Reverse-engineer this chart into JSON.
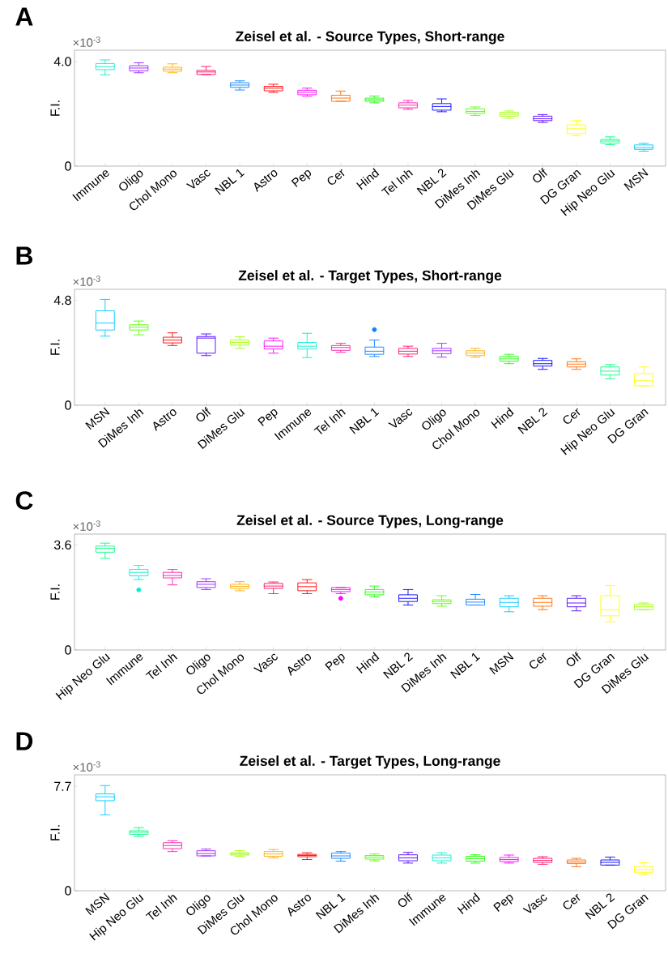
{
  "chart_data": [
    {
      "type": "box",
      "title": "Zeisel et al. - Source Types, Short-range",
      "ylabel": "F.I.",
      "annotations": [
        "A",
        "×10$^{-3}$"
      ],
      "categories": [
        "Immune",
        "Oligo",
        "Chol Mono",
        "Vasc",
        "NBL 1",
        "Astro",
        "Pep",
        "Cer",
        "Hind",
        "Tel Inh",
        "NBL 2",
        "DiMes Inh",
        "DiMes Glu",
        "Olf",
        "DG Gran",
        "Hip Neo Glu",
        "MSN"
      ],
      "colors": [
        "#00f0d0",
        "#9a20ff",
        "#ffaa00",
        "#ff0a64",
        "#0a80ff",
        "#ff0000",
        "#ff00ff",
        "#ff6a00",
        "#1aff00",
        "#ff1aa8",
        "#0000ff",
        "#55ff00",
        "#a0ff00",
        "#5000ff",
        "#ffff00",
        "#00ff80",
        "#00c8ff"
      ],
      "ylim": [
        0,
        4.43
      ],
      "yticks": [
        0,
        {
          "value": 4,
          "label": "4.0"
        }
      ],
      "grid": false,
      "boxes": [
        {
          "low": 3.49,
          "q1": 3.69,
          "median": 3.8,
          "q3": 3.92,
          "high": 4.06
        },
        {
          "low": 3.57,
          "q1": 3.64,
          "median": 3.75,
          "q3": 3.84,
          "high": 3.95
        },
        {
          "low": 3.57,
          "q1": 3.63,
          "median": 3.71,
          "q3": 3.78,
          "high": 3.91
        },
        {
          "low": 3.5,
          "q1": 3.5,
          "median": 3.6,
          "q3": 3.66,
          "high": 3.81
        },
        {
          "low": 2.91,
          "q1": 3.01,
          "median": 3.1,
          "q3": 3.19,
          "high": 3.26
        },
        {
          "low": 2.82,
          "q1": 2.88,
          "median": 2.98,
          "q3": 3.05,
          "high": 3.13
        },
        {
          "low": 2.67,
          "q1": 2.73,
          "median": 2.82,
          "q3": 2.9,
          "high": 2.98
        },
        {
          "low": 2.48,
          "q1": 2.48,
          "median": 2.6,
          "q3": 2.71,
          "high": 2.87
        },
        {
          "low": 2.42,
          "q1": 2.48,
          "median": 2.54,
          "q3": 2.6,
          "high": 2.68
        },
        {
          "low": 2.17,
          "q1": 2.23,
          "median": 2.33,
          "q3": 2.42,
          "high": 2.51
        },
        {
          "low": 2.08,
          "q1": 2.14,
          "median": 2.28,
          "q3": 2.39,
          "high": 2.57
        },
        {
          "low": 1.94,
          "q1": 2.02,
          "median": 2.09,
          "q3": 2.19,
          "high": 2.26
        },
        {
          "low": 1.83,
          "q1": 1.91,
          "median": 1.98,
          "q3": 2.06,
          "high": 2.11
        },
        {
          "low": 1.67,
          "q1": 1.74,
          "median": 1.81,
          "q3": 1.91,
          "high": 1.97
        },
        {
          "low": 1.16,
          "q1": 1.24,
          "median": 1.43,
          "q3": 1.58,
          "high": 1.74
        },
        {
          "low": 0.82,
          "q1": 0.88,
          "median": 0.96,
          "q3": 1.02,
          "high": 1.12
        },
        {
          "low": 0.57,
          "q1": 0.64,
          "median": 0.71,
          "q3": 0.81,
          "high": 0.87
        }
      ]
    },
    {
      "type": "box",
      "title": "Zeisel et al. - Target Types, Short-range",
      "ylabel": "F.I.",
      "annotations": [
        "B",
        "×10$^{-3}$"
      ],
      "categories": [
        "MSN",
        "DiMes Inh",
        "Astro",
        "Olf",
        "DiMes Glu",
        "Pep",
        "Immune",
        "Tel Inh",
        "NBL 1",
        "Vasc",
        "Oligo",
        "Chol Mono",
        "Hind",
        "NBL 2",
        "Cer",
        "Hip Neo Glu",
        "DG Gran"
      ],
      "colors": [
        "#00c8ff",
        "#55ff00",
        "#ff0000",
        "#5000ff",
        "#a0ff00",
        "#ff00ff",
        "#00f0d0",
        "#ff1aa8",
        "#0a80ff",
        "#ff0a64",
        "#9a20ff",
        "#ffaa00",
        "#1aff00",
        "#0000ff",
        "#ff6a00",
        "#00ff80",
        "#ffff00"
      ],
      "ylim": [
        0,
        5.3
      ],
      "yticks": [
        0,
        4.8
      ],
      "grid": false,
      "boxes": [
        {
          "low": 3.16,
          "q1": 3.44,
          "median": 3.76,
          "q3": 4.32,
          "high": 4.84
        },
        {
          "low": 3.22,
          "q1": 3.44,
          "median": 3.57,
          "q3": 3.68,
          "high": 3.85
        },
        {
          "low": 2.73,
          "q1": 2.85,
          "median": 2.98,
          "q3": 3.11,
          "high": 3.31
        },
        {
          "low": 2.27,
          "q1": 2.38,
          "median": 3.07,
          "q3": 3.14,
          "high": 3.26
        },
        {
          "low": 2.6,
          "q1": 2.75,
          "median": 2.87,
          "q3": 2.98,
          "high": 3.13
        },
        {
          "low": 2.38,
          "q1": 2.57,
          "median": 2.7,
          "q3": 2.94,
          "high": 3.07
        },
        {
          "low": 2.18,
          "q1": 2.57,
          "median": 2.7,
          "q3": 2.87,
          "high": 3.29
        },
        {
          "low": 2.42,
          "q1": 2.51,
          "median": 2.64,
          "q3": 2.73,
          "high": 2.83
        },
        {
          "low": 2.23,
          "q1": 2.33,
          "median": 2.47,
          "q3": 2.66,
          "high": 2.98,
          "outliers": [
            3.46
          ]
        },
        {
          "low": 2.23,
          "q1": 2.34,
          "median": 2.47,
          "q3": 2.6,
          "high": 2.7
        },
        {
          "low": 2.2,
          "q1": 2.36,
          "median": 2.49,
          "q3": 2.6,
          "high": 2.83
        },
        {
          "low": 2.2,
          "q1": 2.27,
          "median": 2.38,
          "q3": 2.49,
          "high": 2.6
        },
        {
          "low": 1.9,
          "q1": 2.01,
          "median": 2.12,
          "q3": 2.23,
          "high": 2.33
        },
        {
          "low": 1.64,
          "q1": 1.79,
          "median": 1.9,
          "q3": 2.05,
          "high": 2.14
        },
        {
          "low": 1.64,
          "q1": 1.75,
          "median": 1.88,
          "q3": 1.99,
          "high": 2.12
        },
        {
          "low": 1.21,
          "q1": 1.38,
          "median": 1.56,
          "q3": 1.75,
          "high": 1.86
        },
        {
          "low": 0.89,
          "q1": 0.89,
          "median": 1.12,
          "q3": 1.45,
          "high": 1.75
        }
      ]
    },
    {
      "type": "box",
      "title": "Zeisel et al. - Source Types, Long-range",
      "ylabel": "F.I.",
      "annotations": [
        "C",
        "×10$^{-3}$"
      ],
      "categories": [
        "Hip Neo Glu",
        "Immune",
        "Tel Inh",
        "Oligo",
        "Chol Mono",
        "Vasc",
        "Astro",
        "Pep",
        "Hind",
        "NBL 2",
        "DiMes Inh",
        "NBL 1",
        "MSN",
        "Cer",
        "Olf",
        "DG Gran",
        "DiMes Glu"
      ],
      "colors": [
        "#00ff80",
        "#00f0d0",
        "#ff1aa8",
        "#9a20ff",
        "#ffaa00",
        "#ff0a64",
        "#ff0000",
        "#ff00ff",
        "#1aff00",
        "#0000ff",
        "#55ff00",
        "#0a80ff",
        "#00c8ff",
        "#ff6a00",
        "#5000ff",
        "#ffff00",
        "#a0ff00"
      ],
      "ylim": [
        0,
        3.97
      ],
      "yticks": [
        0,
        3.6
      ],
      "grid": false,
      "boxes": [
        {
          "low": 3.14,
          "q1": 3.35,
          "median": 3.48,
          "q3": 3.56,
          "high": 3.66
        },
        {
          "low": 2.41,
          "q1": 2.54,
          "median": 2.66,
          "q3": 2.76,
          "high": 2.9,
          "outliers": [
            2.06
          ]
        },
        {
          "low": 2.23,
          "q1": 2.47,
          "median": 2.55,
          "q3": 2.66,
          "high": 2.76
        },
        {
          "low": 2.07,
          "q1": 2.14,
          "median": 2.25,
          "q3": 2.34,
          "high": 2.44
        },
        {
          "low": 2.03,
          "q1": 2.11,
          "median": 2.18,
          "q3": 2.25,
          "high": 2.34
        },
        {
          "low": 1.93,
          "q1": 2.11,
          "median": 2.19,
          "q3": 2.28,
          "high": 2.33
        },
        {
          "low": 1.93,
          "q1": 2.03,
          "median": 2.17,
          "q3": 2.3,
          "high": 2.41
        },
        {
          "low": 1.93,
          "q1": 2.0,
          "median": 2.07,
          "q3": 2.14,
          "high": 2.14,
          "outliers": [
            1.77
          ]
        },
        {
          "low": 1.82,
          "q1": 1.89,
          "median": 1.99,
          "q3": 2.07,
          "high": 2.19
        },
        {
          "low": 1.54,
          "q1": 1.66,
          "median": 1.77,
          "q3": 1.89,
          "high": 2.07
        },
        {
          "low": 1.5,
          "q1": 1.59,
          "median": 1.66,
          "q3": 1.72,
          "high": 1.86
        },
        {
          "low": 1.54,
          "q1": 1.54,
          "median": 1.64,
          "q3": 1.74,
          "high": 1.9
        },
        {
          "low": 1.31,
          "q1": 1.48,
          "median": 1.63,
          "q3": 1.77,
          "high": 1.86
        },
        {
          "low": 1.38,
          "q1": 1.5,
          "median": 1.63,
          "q3": 1.77,
          "high": 1.86
        },
        {
          "low": 1.34,
          "q1": 1.48,
          "median": 1.61,
          "q3": 1.77,
          "high": 1.86
        },
        {
          "low": 0.97,
          "q1": 1.17,
          "median": 1.38,
          "q3": 1.86,
          "high": 2.21
        },
        {
          "low": 1.38,
          "q1": 1.38,
          "median": 1.48,
          "q3": 1.56,
          "high": 1.61
        }
      ]
    },
    {
      "type": "box",
      "title": "Zeisel et al. - Target Types, Long-range",
      "ylabel": "F.I.",
      "annotations": [
        "D",
        "×10$^{-3}$"
      ],
      "categories": [
        "MSN",
        "Hip Neo Glu",
        "Tel Inh",
        "Oligo",
        "DiMes Glu",
        "Chol Mono",
        "Astro",
        "NBL 1",
        "DiMes Inh",
        "Olf",
        "Immune",
        "Hind",
        "Pep",
        "Vasc",
        "Cer",
        "NBL 2",
        "DG Gran"
      ],
      "colors": [
        "#00c8ff",
        "#00ff80",
        "#ff1aa8",
        "#9a20ff",
        "#a0ff00",
        "#ffaa00",
        "#ff0000",
        "#0a80ff",
        "#55ff00",
        "#5000ff",
        "#00f0d0",
        "#1aff00",
        "#ff00ff",
        "#ff0a64",
        "#ff6a00",
        "#0000ff",
        "#ffff00"
      ],
      "ylim": [
        0,
        8.55
      ],
      "yticks": [
        0,
        7.7
      ],
      "grid": false,
      "boxes": [
        {
          "low": 5.6,
          "q1": 6.64,
          "median": 6.93,
          "q3": 7.14,
          "high": 7.76
        },
        {
          "low": 4.01,
          "q1": 4.16,
          "median": 4.31,
          "q3": 4.42,
          "high": 4.66
        },
        {
          "low": 2.89,
          "q1": 3.1,
          "median": 3.33,
          "q3": 3.54,
          "high": 3.69
        },
        {
          "low": 2.57,
          "q1": 2.57,
          "median": 2.74,
          "q3": 2.95,
          "high": 3.07
        },
        {
          "low": 2.54,
          "q1": 2.63,
          "median": 2.71,
          "q3": 2.8,
          "high": 2.95
        },
        {
          "low": 2.42,
          "q1": 2.54,
          "median": 2.71,
          "q3": 2.89,
          "high": 3.04
        },
        {
          "low": 2.3,
          "q1": 2.51,
          "median": 2.6,
          "q3": 2.68,
          "high": 2.8
        },
        {
          "low": 2.18,
          "q1": 2.39,
          "median": 2.57,
          "q3": 2.77,
          "high": 2.89
        },
        {
          "low": 2.21,
          "q1": 2.33,
          "median": 2.48,
          "q3": 2.6,
          "high": 2.71
        },
        {
          "low": 2.04,
          "q1": 2.21,
          "median": 2.42,
          "q3": 2.65,
          "high": 2.83
        },
        {
          "low": 2.04,
          "q1": 2.21,
          "median": 2.42,
          "q3": 2.63,
          "high": 2.8
        },
        {
          "low": 2.04,
          "q1": 2.18,
          "median": 2.36,
          "q3": 2.54,
          "high": 2.65
        },
        {
          "low": 2.04,
          "q1": 2.15,
          "median": 2.3,
          "q3": 2.45,
          "high": 2.63
        },
        {
          "low": 1.95,
          "q1": 2.09,
          "median": 2.24,
          "q3": 2.39,
          "high": 2.51
        },
        {
          "low": 1.77,
          "q1": 2.01,
          "median": 2.12,
          "q3": 2.27,
          "high": 2.39
        },
        {
          "low": 1.89,
          "q1": 1.89,
          "median": 2.09,
          "q3": 2.27,
          "high": 2.48
        },
        {
          "low": 1.18,
          "q1": 1.36,
          "median": 1.56,
          "q3": 1.8,
          "high": 2.06
        }
      ]
    }
  ]
}
